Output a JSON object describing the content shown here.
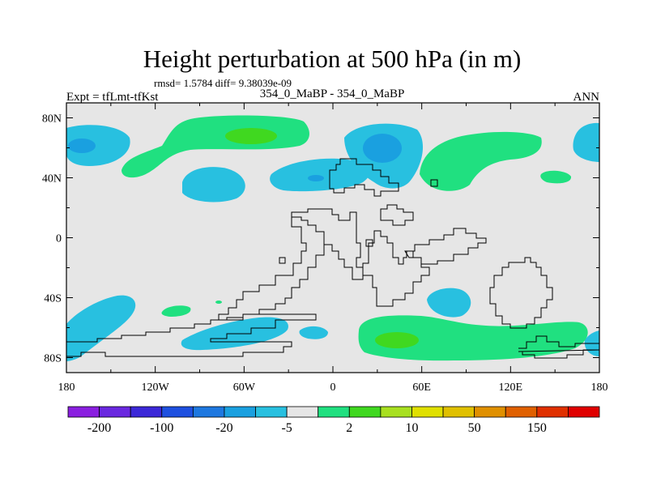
{
  "chart_data": {
    "type": "contour-map",
    "title": "Height perturbation at 500 hPa (in m)",
    "stats_line": "rmsd= 1.5784 diff= 9.38039e-09",
    "left_label": "Expt = tfLmt-tfKst",
    "center_label": "354_0_MaBP - 354_0_MaBP",
    "right_label": "ANN",
    "x_ticks": [
      {
        "lon": -180,
        "label": "180"
      },
      {
        "lon": -120,
        "label": "120W"
      },
      {
        "lon": -60,
        "label": "60W"
      },
      {
        "lon": 0,
        "label": "0"
      },
      {
        "lon": 60,
        "label": "60E"
      },
      {
        "lon": 120,
        "label": "120E"
      },
      {
        "lon": 180,
        "label": "180"
      }
    ],
    "y_ticks": [
      {
        "lat": 80,
        "label": "80N"
      },
      {
        "lat": 40,
        "label": "40N"
      },
      {
        "lat": 0,
        "label": "0"
      },
      {
        "lat": -40,
        "label": "40S"
      },
      {
        "lat": -80,
        "label": "80S"
      }
    ],
    "xlim": [
      -180,
      180
    ],
    "ylim": [
      -90,
      90
    ],
    "colorbar": {
      "colors": [
        "#8a1fe0",
        "#6a28e0",
        "#3c28d8",
        "#1e50e0",
        "#1e78e0",
        "#1aa0e0",
        "#28c0e0",
        "#e6e6e6",
        "#20e080",
        "#40d820",
        "#a8e020",
        "#e0e000",
        "#e0c000",
        "#e09000",
        "#e06000",
        "#e03000",
        "#e00000"
      ],
      "labels": [
        {
          "slot": 1,
          "text": "-200"
        },
        {
          "slot": 3,
          "text": "-100"
        },
        {
          "slot": 5,
          "text": "-20"
        },
        {
          "slot": 7,
          "text": "-5"
        },
        {
          "slot": 9,
          "text": "2"
        },
        {
          "slot": 11,
          "text": "10"
        },
        {
          "slot": 13,
          "text": "50"
        },
        {
          "slot": 15,
          "text": "150"
        }
      ]
    },
    "fill_colors": {
      "background": "#e6e6e6",
      "neg_light": "#28c0e0",
      "neg_mid": "#1aa0e0",
      "pos_light": "#20e080",
      "pos_mid": "#40d820"
    }
  }
}
